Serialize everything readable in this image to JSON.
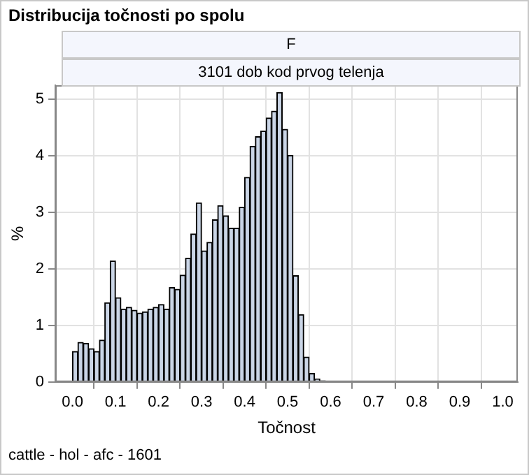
{
  "chart_data": {
    "type": "histogram",
    "title": "Distribucija točnosti po spolu",
    "subtitle": "F",
    "xlabel": "Točnost",
    "ylabel": "%",
    "annotations": [
      "3101 dob kod prvog telenja",
      "cattle - hol - afc - 1601"
    ],
    "bins": [
      0,
      0.0125,
      0.025,
      0.0375,
      0.05,
      0.0625,
      0.075,
      0.0875,
      0.1,
      0.1125,
      0.125,
      0.1375,
      0.15,
      0.1625,
      0.175,
      0.1875,
      0.2,
      0.2125,
      0.225,
      0.2375,
      0.25,
      0.2625,
      0.275,
      0.2875,
      0.3,
      0.3125,
      0.325,
      0.3375,
      0.35,
      0.3625,
      0.375,
      0.3875,
      0.4,
      0.4125,
      0.425,
      0.4375,
      0.45,
      0.4625,
      0.475,
      0.4875,
      0.5,
      0.5125,
      0.525,
      0.5375,
      0.55,
      0.5625,
      0.575,
      0.5875
    ],
    "values": [
      0.54,
      0.7,
      0.68,
      0.59,
      0.54,
      0.74,
      1.4,
      2.14,
      1.49,
      1.29,
      1.32,
      1.27,
      1.22,
      1.24,
      1.29,
      1.32,
      1.37,
      1.29,
      1.67,
      1.64,
      1.89,
      2.19,
      2.62,
      3.17,
      2.32,
      2.47,
      2.87,
      3.12,
      2.94,
      2.72,
      2.72,
      3.09,
      3.62,
      4.17,
      4.34,
      4.44,
      4.67,
      4.79,
      5.12,
      4.47,
      4.01,
      1.88,
      1.19,
      0.44,
      0.15,
      0.05,
      0.02
    ],
    "color": "#cad5e6",
    "xlim": [
      -0.04,
      1.035
    ],
    "xticks": [
      {
        "value": 0,
        "label": "0.0"
      },
      {
        "value": 0.1,
        "label": "0.1"
      },
      {
        "value": 0.2,
        "label": "0.2"
      },
      {
        "value": 0.3,
        "label": "0.3"
      },
      {
        "value": 0.4,
        "label": "0.4"
      },
      {
        "value": 0.5,
        "label": "0.5"
      },
      {
        "value": 0.6,
        "label": "0.6"
      },
      {
        "value": 0.7,
        "label": "0.7"
      },
      {
        "value": 0.8,
        "label": "0.8"
      },
      {
        "value": 0.9,
        "label": "0.9"
      },
      {
        "value": 1,
        "label": "1.0"
      }
    ],
    "ylim": [
      0,
      5.25
    ],
    "yticks": [
      0,
      1,
      2,
      3,
      4,
      5
    ],
    "grid": true,
    "legend": false
  }
}
